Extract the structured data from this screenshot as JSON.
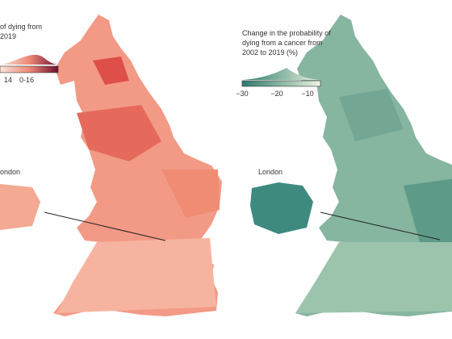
{
  "left_map": {
    "legend_title": [
      "of dying from",
      "2019"
    ],
    "legend_labels": [
      "14",
      "0-16"
    ],
    "inset_label": "ondon"
  },
  "right_map": {
    "legend_title": [
      "Change in the probability of",
      "dying from a cancer from",
      "2002 to 2019 (%)"
    ],
    "legend_labels": [
      "−30",
      "−20",
      "−10"
    ],
    "inset_label": "London"
  }
}
